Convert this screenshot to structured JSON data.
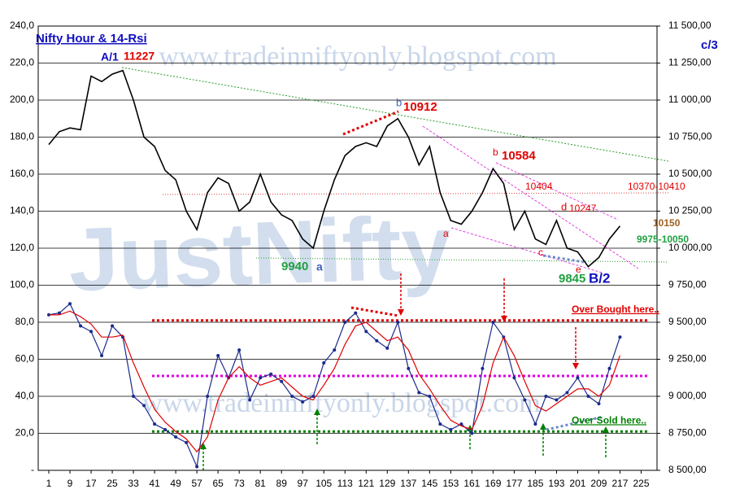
{
  "chart_data": {
    "type": "line",
    "title": "Nifty Hour & 14-Rsi",
    "x": [
      1,
      5,
      9,
      13,
      17,
      21,
      25,
      29,
      33,
      37,
      41,
      45,
      49,
      53,
      57,
      61,
      65,
      69,
      73,
      77,
      81,
      85,
      89,
      93,
      97,
      101,
      105,
      109,
      113,
      117,
      121,
      125,
      129,
      133,
      137,
      141,
      145,
      149,
      153,
      157,
      161,
      165,
      169,
      173,
      177,
      181,
      185,
      189,
      193,
      197,
      201,
      205,
      209,
      213,
      217
    ],
    "series": [
      {
        "name": "Nifty",
        "color": "#000000",
        "axis": "y2",
        "values": [
          10700,
          10787,
          10812,
          10800,
          11162,
          11125,
          11175,
          11200,
          11000,
          10750,
          10687,
          10525,
          10462,
          10250,
          10125,
          10375,
          10475,
          10437,
          10250,
          10312,
          10500,
          10312,
          10225,
          10187,
          10062,
          10000,
          10250,
          10462,
          10625,
          10687,
          10712,
          10687,
          10825,
          10875,
          10750,
          10562,
          10687,
          10375,
          10187,
          10162,
          10250,
          10375,
          10537,
          10437,
          10125,
          10250,
          10062,
          10025,
          10187,
          10000,
          9975,
          9875,
          9937,
          10062,
          10150
        ]
      },
      {
        "name": "Rsi",
        "color": "#1a2a8c",
        "values": [
          84,
          85,
          90,
          78,
          75,
          62,
          78,
          72,
          40,
          35,
          25,
          22,
          18,
          15,
          2,
          40,
          62,
          50,
          65,
          38,
          50,
          52,
          48,
          40,
          37,
          40,
          58,
          65,
          80,
          85,
          75,
          70,
          66,
          80,
          55,
          42,
          40,
          25,
          22,
          25,
          20,
          55,
          80,
          72,
          50,
          38,
          25,
          40,
          38,
          42,
          50,
          40,
          36,
          55,
          72
        ]
      },
      {
        "name": "Rsi MA",
        "color": "#e00000",
        "values": [
          84,
          84,
          86,
          83,
          79,
          72,
          72,
          73,
          58,
          45,
          33,
          26,
          21,
          17,
          10,
          18,
          38,
          50,
          56,
          50,
          46,
          48,
          50,
          45,
          40,
          38,
          46,
          55,
          68,
          78,
          80,
          75,
          70,
          72,
          65,
          52,
          44,
          35,
          27,
          24,
          22,
          35,
          58,
          72,
          62,
          48,
          35,
          32,
          36,
          40,
          44,
          44,
          40,
          46,
          62
        ]
      }
    ],
    "xlim": [
      -3,
      231
    ],
    "xticks": [
      1,
      9,
      17,
      25,
      33,
      41,
      49,
      57,
      65,
      73,
      81,
      89,
      97,
      105,
      113,
      121,
      129,
      137,
      145,
      153,
      161,
      169,
      177,
      185,
      193,
      201,
      209,
      217,
      225
    ],
    "ylim": [
      0,
      240
    ],
    "yticks": [
      {
        "value": 0,
        "label": "-"
      },
      {
        "value": 20,
        "label": "20,0"
      },
      {
        "value": 40,
        "label": "40,0"
      },
      {
        "value": 60,
        "label": "60,0"
      },
      {
        "value": 80,
        "label": "80,0"
      },
      {
        "value": 100,
        "label": "100,0"
      },
      {
        "value": 120,
        "label": "120,0"
      },
      {
        "value": 140,
        "label": "140,0"
      },
      {
        "value": 160,
        "label": "160,0"
      },
      {
        "value": 180,
        "label": "180,0"
      },
      {
        "value": 200,
        "label": "200,0"
      },
      {
        "value": 220,
        "label": "220,0"
      },
      {
        "value": 240,
        "label": "240,0"
      }
    ],
    "y2lim": [
      8500,
      11500
    ],
    "y2ticks": [
      {
        "value": 8500,
        "label": "8 500,00"
      },
      {
        "value": 8750,
        "label": "8 750,00"
      },
      {
        "value": 9000,
        "label": "9 000,00"
      },
      {
        "value": 9250,
        "label": "9 250,00"
      },
      {
        "value": 9500,
        "label": "9 500,00"
      },
      {
        "value": 9750,
        "label": "9 750,00"
      },
      {
        "value": 10000,
        "label": "10 000,00"
      },
      {
        "value": 10250,
        "label": "10 250,00"
      },
      {
        "value": 10500,
        "label": "10 500,00"
      },
      {
        "value": 10750,
        "label": "10 750,00"
      },
      {
        "value": 11000,
        "label": "11 000,00"
      },
      {
        "value": 11250,
        "label": "11 250,00"
      },
      {
        "value": 11500,
        "label": "11 500,00"
      }
    ],
    "grid": true,
    "hlines": [
      {
        "value": 81,
        "color": "#e00000",
        "label": "Over Bought here.."
      },
      {
        "value": 51,
        "color": "#e000e0"
      },
      {
        "value": 21,
        "color": "#008000",
        "label": "Over Sold here.."
      }
    ],
    "annotations": {
      "corner": "c/3",
      "a1": "A/1",
      "a1v": "11227",
      "b1": "b",
      "b1v": "10912",
      "b2": "b",
      "b2v": "10584",
      "l10404": "10404",
      "d": "d",
      "dv": "10247",
      "r1": "10370-10410",
      "r2": "10150",
      "r3": "9975-10050",
      "a2": "a",
      "c": "c",
      "e": "e",
      "ev": "9845",
      "b2lab": "B/2",
      "lv": "9940",
      "la": "a",
      "wm1": "www.tradeinniftyonly.blogspot.com",
      "wm2": "www.tradeinniftyonly.blogspot.com",
      "wm3": "JustNifty"
    }
  }
}
